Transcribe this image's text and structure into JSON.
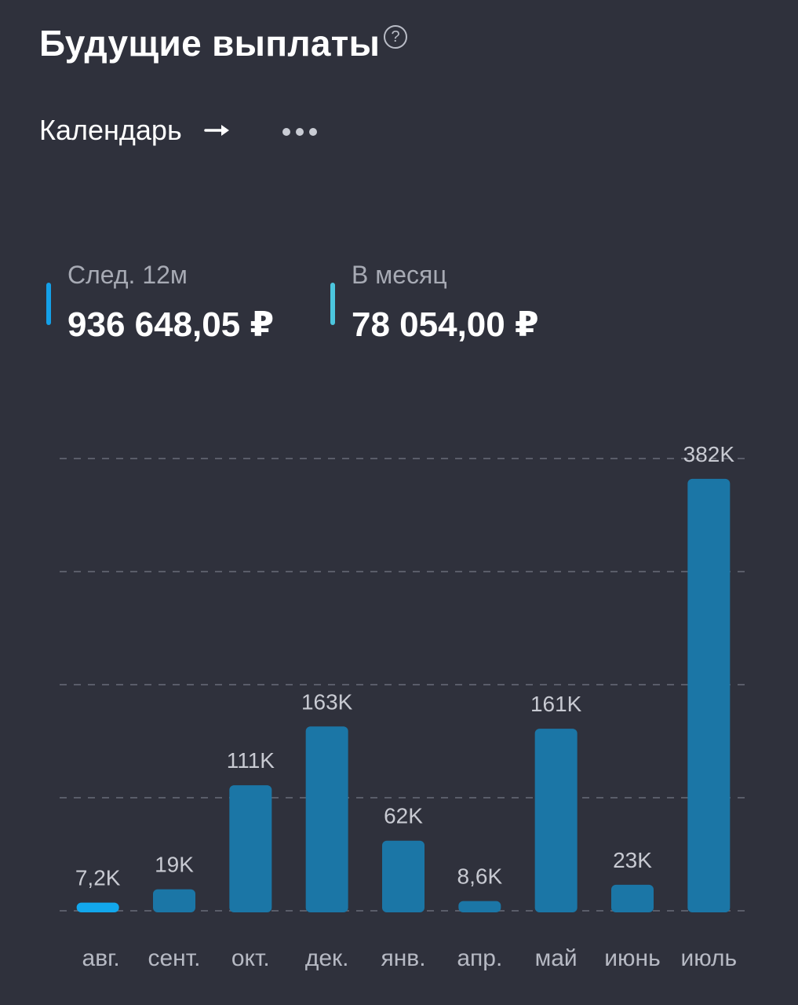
{
  "header": {
    "title": "Будущие выплаты",
    "help_symbol": "?",
    "help_icon": "question-circle-icon"
  },
  "toolbar": {
    "calendar_label": "Календарь",
    "arrow_icon": "arrow-right-icon",
    "more_icon": "more-horizontal-icon"
  },
  "stats": [
    {
      "label": "След. 12м",
      "value": "936 648,05 ₽",
      "color": "#14a0e8"
    },
    {
      "label": "В месяц",
      "value": "78 054,00 ₽",
      "color": "#4cc6de"
    }
  ],
  "colors": {
    "background": "#2f313c",
    "bar": "#1b76a6",
    "bar_highlight": "#12a7ec",
    "grid": "#5a5d69"
  },
  "chart_data": {
    "type": "bar",
    "categories": [
      "авг.",
      "сент.",
      "окт.",
      "дек.",
      "янв.",
      "апр.",
      "май",
      "июнь",
      "июль"
    ],
    "values": [
      7.2,
      19,
      111,
      163,
      62,
      8.6,
      161,
      23,
      382
    ],
    "value_labels": [
      "7,2K",
      "19K",
      "111K",
      "163K",
      "62K",
      "8,6K",
      "161K",
      "23K",
      "382K"
    ],
    "unit": "K",
    "highlighted_index": 0,
    "ylim": [
      0,
      400
    ],
    "grid": true
  }
}
